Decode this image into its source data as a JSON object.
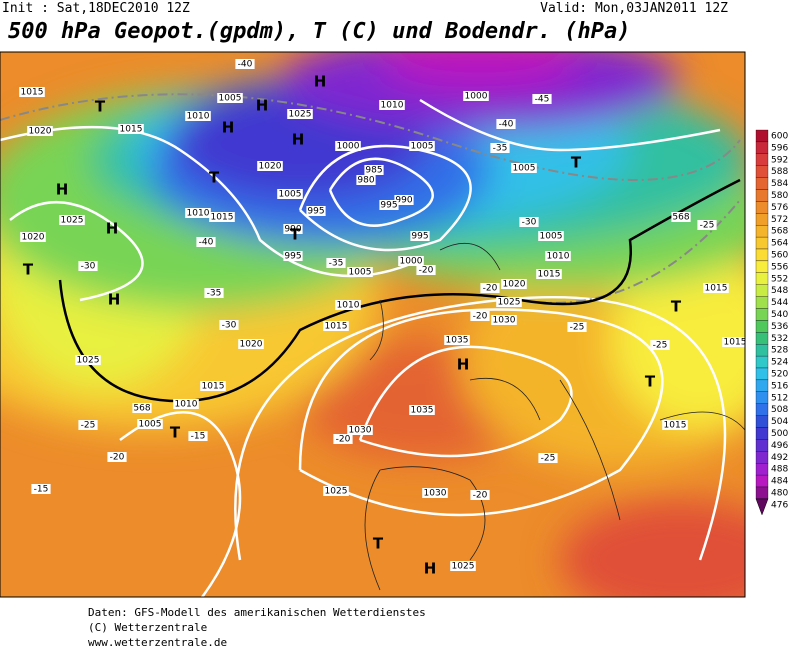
{
  "header": {
    "init": "Init : Sat,18DEC2010 12Z",
    "valid": "Valid: Mon,03JAN2011 12Z",
    "title": "500 hPa Geopot.(gpdm), T (C) und Bodendr. (hPa)"
  },
  "legend": {
    "values": [
      600,
      596,
      592,
      588,
      584,
      580,
      576,
      572,
      568,
      564,
      560,
      556,
      552,
      548,
      544,
      540,
      536,
      532,
      528,
      524,
      520,
      516,
      512,
      508,
      504,
      500,
      496,
      492,
      488,
      484,
      480,
      476
    ],
    "colors": [
      "#b0102e",
      "#c8283a",
      "#d83c3c",
      "#e05038",
      "#e46432",
      "#e8782e",
      "#ec8c2a",
      "#f0a028",
      "#f4b42c",
      "#f8c830",
      "#fadc34",
      "#f8ec3c",
      "#e8f040",
      "#c8ec44",
      "#a0e04c",
      "#78d454",
      "#50c85c",
      "#38c078",
      "#30c0a0",
      "#30c8c8",
      "#30c0e8",
      "#30a8f0",
      "#3090f0",
      "#3070e8",
      "#3050d8",
      "#4038d0",
      "#6030d0",
      "#8028d0",
      "#a020d0",
      "#b818c0",
      "#8c1090",
      "#600860"
    ]
  },
  "map": {
    "labels": [
      "1015",
      "T",
      "1020",
      "1015",
      "1010",
      "H",
      "1005",
      "H",
      "-40",
      "H",
      "1025",
      "H",
      "1020",
      "T",
      "1010",
      "1015",
      "1005",
      "995",
      "990",
      "T",
      "995",
      "-40",
      "-35",
      "1000",
      "985",
      "980",
      "990",
      "995",
      "1005",
      "1010",
      "1000",
      "-45",
      "-40",
      "-35",
      "1005",
      "T",
      "995",
      "1000",
      "1005",
      "-20",
      "-30",
      "1005",
      "1010",
      "1015",
      "568",
      "-25",
      "H",
      "1025",
      "H",
      "1020",
      "T",
      "-30",
      "H",
      "-35",
      "-30",
      "1010",
      "1015",
      "1020",
      "1025",
      "1020",
      "1025",
      "-20",
      "-20",
      "1030",
      "-25",
      "1035",
      "H",
      "1035",
      "-25",
      "1015",
      "1015",
      "T",
      "T",
      "1015",
      "1010",
      "568",
      "1005",
      "T",
      "-15",
      "-25",
      "-20",
      "-15",
      "1030",
      "-20",
      "-25",
      "1015",
      "1030",
      "-20",
      "1025",
      "T",
      "H",
      "1025"
    ]
  },
  "footer": {
    "lines": [
      "Daten: GFS-Modell des amerikanischen Wetterdienstes",
      "(C) Wetterzentrale",
      "www.wetterzentrale.de"
    ]
  }
}
